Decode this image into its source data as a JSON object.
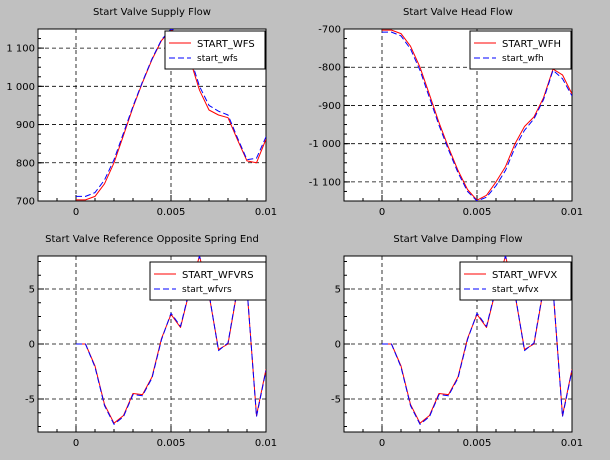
{
  "window": {
    "background": "#c0c0c0",
    "plot_background": "#ffffff"
  },
  "chart_data": [
    {
      "type": "line",
      "title": "Start Valve Supply Flow",
      "xlabel": "",
      "ylabel": "",
      "xlim": [
        -0.002,
        0.01
      ],
      "ylim": [
        700,
        1150
      ],
      "xticks": [
        0,
        0.005,
        0.01
      ],
      "xtick_labels": [
        "0",
        "0.005",
        "0.01"
      ],
      "yticks": [
        700,
        800,
        900,
        1000,
        1100
      ],
      "ytick_labels": [
        "700",
        "800",
        "900",
        "1 000",
        "1 100"
      ],
      "grid": true,
      "legend_position": "top-right",
      "series": [
        {
          "name": "START_WFS",
          "color": "#ff0000",
          "style": "solid",
          "x": [
            0,
            0.0005,
            0.001,
            0.0015,
            0.002,
            0.0025,
            0.003,
            0.0035,
            0.004,
            0.0045,
            0.005,
            0.0055,
            0.006,
            0.0065,
            0.007,
            0.0075,
            0.008,
            0.0085,
            0.009,
            0.0095,
            0.01
          ],
          "values": [
            703,
            703,
            712,
            745,
            800,
            872,
            945,
            1010,
            1070,
            1120,
            1148,
            1135,
            1070,
            990,
            938,
            925,
            918,
            860,
            805,
            800,
            862
          ]
        },
        {
          "name": "start_wfs",
          "color": "#0000ff",
          "style": "dashed",
          "x": [
            0,
            0.0005,
            0.001,
            0.0015,
            0.002,
            0.0025,
            0.003,
            0.0035,
            0.004,
            0.0045,
            0.005,
            0.0055,
            0.006,
            0.0065,
            0.007,
            0.0075,
            0.008,
            0.0085,
            0.009,
            0.0095,
            0.01
          ],
          "values": [
            712,
            712,
            722,
            755,
            808,
            878,
            948,
            1012,
            1072,
            1122,
            1150,
            1140,
            1078,
            1000,
            950,
            935,
            925,
            865,
            808,
            812,
            868
          ]
        }
      ]
    },
    {
      "type": "line",
      "title": "Start Valve Head Flow",
      "xlabel": "",
      "ylabel": "",
      "xlim": [
        -0.002,
        0.01
      ],
      "ylim": [
        -1150,
        -700
      ],
      "xticks": [
        0,
        0.005,
        0.01
      ],
      "xtick_labels": [
        "0",
        "0.005",
        "0.01"
      ],
      "yticks": [
        -1100,
        -1000,
        -900,
        -800,
        -700
      ],
      "ytick_labels": [
        "-1 100",
        "-1 000",
        "-900",
        "-800",
        "-700"
      ],
      "grid": true,
      "legend_position": "top-right",
      "series": [
        {
          "name": "START_WFH",
          "color": "#ff0000",
          "style": "solid",
          "x": [
            0,
            0.0005,
            0.001,
            0.0015,
            0.002,
            0.0025,
            0.003,
            0.0035,
            0.004,
            0.0045,
            0.005,
            0.0055,
            0.006,
            0.0065,
            0.007,
            0.0075,
            0.008,
            0.0085,
            0.009,
            0.0095,
            0.01
          ],
          "values": [
            -703,
            -703,
            -712,
            -745,
            -800,
            -872,
            -945,
            -1010,
            -1070,
            -1120,
            -1148,
            -1135,
            -1100,
            -1060,
            -1000,
            -955,
            -930,
            -880,
            -805,
            -820,
            -870
          ]
        },
        {
          "name": "start_wfh",
          "color": "#0000ff",
          "style": "dashed",
          "x": [
            0,
            0.0005,
            0.001,
            0.0015,
            0.002,
            0.0025,
            0.003,
            0.0035,
            0.004,
            0.0045,
            0.005,
            0.0055,
            0.006,
            0.0065,
            0.007,
            0.0075,
            0.008,
            0.0085,
            0.009,
            0.0095,
            0.01
          ],
          "values": [
            -708,
            -708,
            -718,
            -752,
            -808,
            -880,
            -952,
            -1016,
            -1076,
            -1125,
            -1150,
            -1140,
            -1110,
            -1070,
            -1010,
            -965,
            -935,
            -885,
            -808,
            -830,
            -875
          ]
        }
      ]
    },
    {
      "type": "line",
      "title": "Start Valve Reference Opposite Spring End",
      "xlabel": "",
      "ylabel": "",
      "xlim": [
        -0.002,
        0.01
      ],
      "ylim": [
        -8,
        8
      ],
      "xticks": [
        0,
        0.005,
        0.01
      ],
      "xtick_labels": [
        "0",
        "0.005",
        "0.01"
      ],
      "yticks": [
        -5,
        0,
        5
      ],
      "ytick_labels": [
        "-5",
        "0",
        "5"
      ],
      "grid": true,
      "legend_position": "top-right",
      "series": [
        {
          "name": "START_WFVRS",
          "color": "#ff0000",
          "style": "solid",
          "x": [
            0,
            0.0005,
            0.001,
            0.0015,
            0.002,
            0.0025,
            0.003,
            0.0035,
            0.004,
            0.0045,
            0.005,
            0.0055,
            0.006,
            0.0065,
            0.007,
            0.0075,
            0.008,
            0.0085,
            0.009,
            0.0095,
            0.01
          ],
          "values": [
            0,
            0,
            -2,
            -5.5,
            -7.2,
            -6.5,
            -4.5,
            -4.6,
            -3,
            0.5,
            2.7,
            1.5,
            5,
            8,
            4.5,
            -0.5,
            0,
            5,
            5,
            -6.5,
            -2.3
          ]
        },
        {
          "name": "start_wfvrs",
          "color": "#0000ff",
          "style": "dashed",
          "x": [
            0,
            0.0005,
            0.001,
            0.0015,
            0.002,
            0.0025,
            0.003,
            0.0035,
            0.004,
            0.0045,
            0.005,
            0.0055,
            0.006,
            0.0065,
            0.007,
            0.0075,
            0.008,
            0.0085,
            0.009,
            0.0095,
            0.01
          ],
          "values": [
            0,
            0,
            -2.1,
            -5.6,
            -7.3,
            -6.6,
            -4.6,
            -4.7,
            -3.1,
            0.4,
            2.8,
            1.6,
            5.1,
            8,
            4.6,
            -0.6,
            0.1,
            5.1,
            5.1,
            -6.6,
            -2.4
          ]
        }
      ]
    },
    {
      "type": "line",
      "title": "Start Valve Damping Flow",
      "xlabel": "",
      "ylabel": "",
      "xlim": [
        -0.002,
        0.01
      ],
      "ylim": [
        -8,
        8
      ],
      "xticks": [
        0,
        0.005,
        0.01
      ],
      "xtick_labels": [
        "0",
        "0.005",
        "0.01"
      ],
      "yticks": [
        -5,
        0,
        5
      ],
      "ytick_labels": [
        "-5",
        "0",
        "5"
      ],
      "grid": true,
      "legend_position": "top-right",
      "series": [
        {
          "name": "START_WFVX",
          "color": "#ff0000",
          "style": "solid",
          "x": [
            0,
            0.0005,
            0.001,
            0.0015,
            0.002,
            0.0025,
            0.003,
            0.0035,
            0.004,
            0.0045,
            0.005,
            0.0055,
            0.006,
            0.0065,
            0.007,
            0.0075,
            0.008,
            0.0085,
            0.009,
            0.0095,
            0.01
          ],
          "values": [
            0,
            0,
            -2,
            -5.5,
            -7.2,
            -6.5,
            -4.5,
            -4.6,
            -3,
            0.5,
            2.7,
            1.5,
            5,
            8,
            4.5,
            -0.5,
            0,
            5,
            5,
            -6.5,
            -2.3
          ]
        },
        {
          "name": "start_wfvx",
          "color": "#0000ff",
          "style": "dashed",
          "x": [
            0,
            0.0005,
            0.001,
            0.0015,
            0.002,
            0.0025,
            0.003,
            0.0035,
            0.004,
            0.0045,
            0.005,
            0.0055,
            0.006,
            0.0065,
            0.007,
            0.0075,
            0.008,
            0.0085,
            0.009,
            0.0095,
            0.01
          ],
          "values": [
            0,
            0,
            -2.1,
            -5.6,
            -7.3,
            -6.6,
            -4.6,
            -4.7,
            -3.1,
            0.4,
            2.8,
            1.6,
            5.1,
            8,
            4.6,
            -0.6,
            0.1,
            5.1,
            5.1,
            -6.6,
            -2.4
          ]
        }
      ]
    }
  ]
}
